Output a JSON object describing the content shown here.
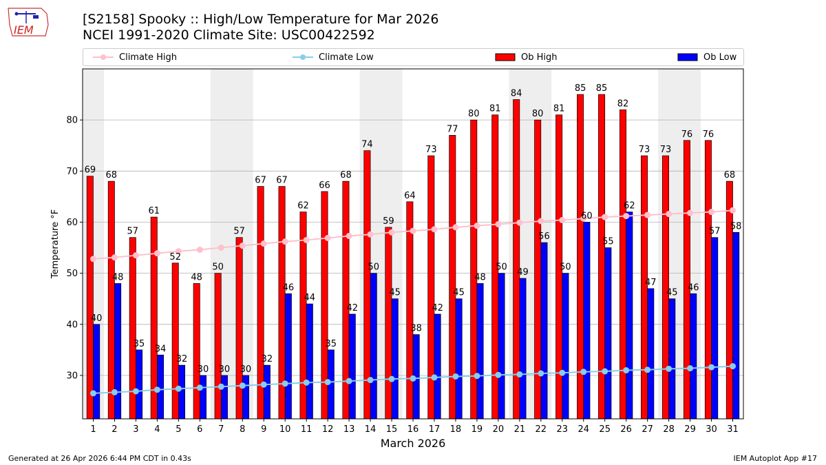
{
  "header": {
    "title": "[S2158] Spooky :: High/Low Temperature for Mar 2026",
    "subtitle": "NCEI 1991-2020 Climate Site: USC00422592",
    "logo_text": "IEM"
  },
  "footer": {
    "left": "Generated at 26 Apr 2026 6:44 PM CDT in 0.43s",
    "right": "IEM Autoplot App #17"
  },
  "legend": [
    {
      "label": "Climate High",
      "color": "#ffc0cb",
      "kind": "line"
    },
    {
      "label": "Climate Low",
      "color": "#87ceeb",
      "kind": "line"
    },
    {
      "label": "Ob High",
      "color": "#ff0000",
      "kind": "bar"
    },
    {
      "label": "Ob Low",
      "color": "#0000ff",
      "kind": "bar"
    }
  ],
  "chart_data": {
    "type": "bar",
    "xlabel": "March 2026",
    "ylabel": "Temperature °F",
    "ylim": [
      21.5,
      90
    ],
    "yticks": [
      30,
      40,
      50,
      60,
      70,
      80
    ],
    "grid": true,
    "legend_position": "top",
    "weekend_shading": [
      [
        1,
        1
      ],
      [
        7,
        8
      ],
      [
        14,
        15
      ],
      [
        21,
        22
      ],
      [
        28,
        29
      ]
    ],
    "categories": [
      "1",
      "2",
      "3",
      "4",
      "5",
      "6",
      "7",
      "8",
      "9",
      "10",
      "11",
      "12",
      "13",
      "14",
      "15",
      "16",
      "17",
      "18",
      "19",
      "20",
      "21",
      "22",
      "23",
      "24",
      "25",
      "26",
      "27",
      "28",
      "29",
      "30",
      "31"
    ],
    "series": [
      {
        "name": "Ob High",
        "type": "bar",
        "color": "#ff0000",
        "values": [
          69,
          68,
          57,
          61,
          52,
          48,
          50,
          57,
          67,
          67,
          62,
          66,
          68,
          74,
          59,
          64,
          73,
          77,
          80,
          81,
          84,
          80,
          81,
          85,
          85,
          82,
          73,
          73,
          76,
          76,
          68
        ]
      },
      {
        "name": "Ob Low",
        "type": "bar",
        "color": "#0000ff",
        "values": [
          40,
          48,
          35,
          34,
          32,
          30,
          30,
          30,
          32,
          46,
          44,
          35,
          42,
          50,
          45,
          38,
          42,
          45,
          48,
          50,
          49,
          56,
          50,
          60,
          55,
          62,
          47,
          45,
          46,
          57,
          58
        ]
      },
      {
        "name": "Climate High",
        "type": "line",
        "color": "#ffc0cb",
        "values": [
          52.8,
          53.1,
          53.5,
          53.9,
          54.3,
          54.6,
          55.0,
          55.4,
          55.8,
          56.2,
          56.5,
          56.9,
          57.3,
          57.6,
          58.0,
          58.3,
          58.6,
          59.0,
          59.3,
          59.6,
          59.9,
          60.2,
          60.4,
          60.7,
          61.0,
          61.2,
          61.4,
          61.6,
          61.8,
          62.0,
          62.3
        ]
      },
      {
        "name": "Climate Low",
        "type": "line",
        "color": "#87ceeb",
        "values": [
          26.5,
          26.7,
          26.9,
          27.2,
          27.4,
          27.6,
          27.8,
          28.0,
          28.2,
          28.4,
          28.6,
          28.7,
          28.9,
          29.1,
          29.3,
          29.4,
          29.6,
          29.8,
          29.9,
          30.1,
          30.2,
          30.4,
          30.5,
          30.7,
          30.8,
          31.0,
          31.1,
          31.3,
          31.4,
          31.6,
          31.8
        ]
      }
    ]
  }
}
